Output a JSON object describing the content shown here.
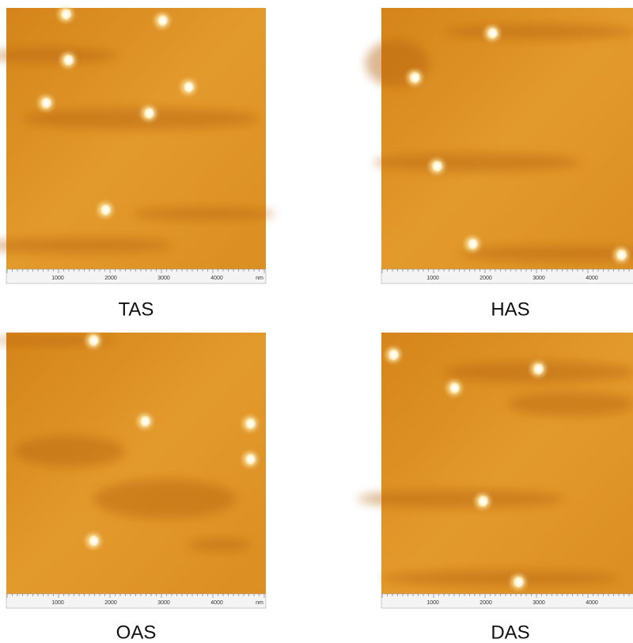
{
  "panels": [
    {
      "caption": "TAS",
      "scale_labels": [
        "1000",
        "2000",
        "3000",
        "4000",
        "nm"
      ]
    },
    {
      "caption": "HAS",
      "scale_labels": [
        "1000",
        "2000",
        "3000",
        "4000"
      ]
    },
    {
      "caption": "OAS",
      "scale_labels": [
        "1000",
        "2000",
        "3000",
        "4000",
        "nm"
      ]
    },
    {
      "caption": "DAS",
      "scale_labels": [
        "1000",
        "2000",
        "3000",
        "4000"
      ]
    }
  ]
}
